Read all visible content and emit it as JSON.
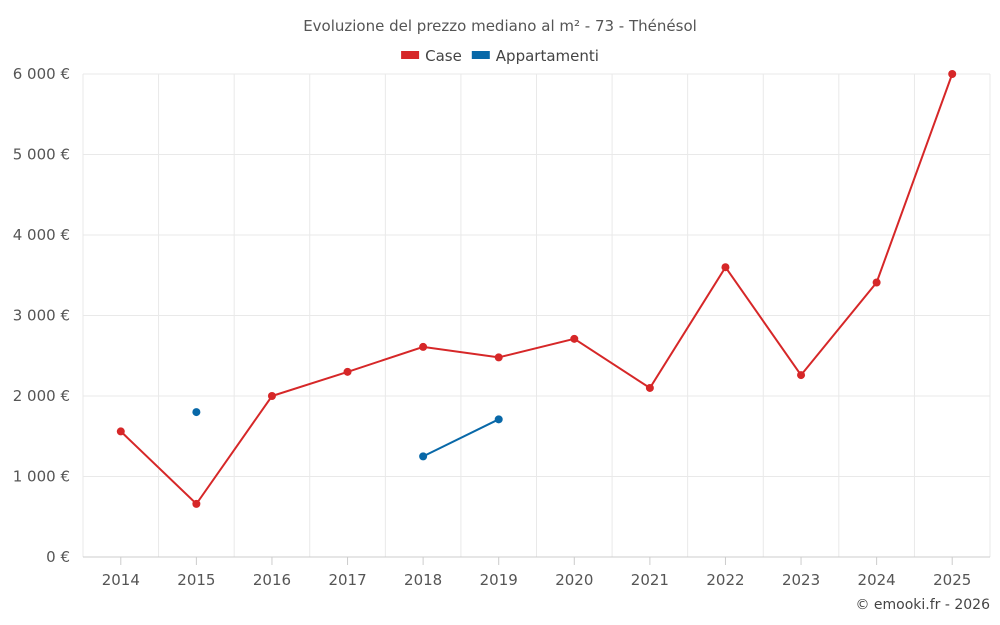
{
  "chart_data": {
    "type": "line",
    "title": "Evoluzione del prezzo mediano al m² - 73 - Thénésol",
    "categories": [
      "2014",
      "2015",
      "2016",
      "2017",
      "2018",
      "2019",
      "2020",
      "2021",
      "2022",
      "2023",
      "2024",
      "2025"
    ],
    "ylim": [
      0,
      6000
    ],
    "yticks": [
      0,
      1000,
      2000,
      3000,
      4000,
      5000,
      6000
    ],
    "ytick_labels": [
      "0 €",
      "1 000 €",
      "2 000 €",
      "3 000 €",
      "4 000 €",
      "5 000 €",
      "6 000 €"
    ],
    "grid": true,
    "legend_position": "top-center",
    "series": [
      {
        "name": "Case",
        "color": "#d62728",
        "values": [
          1560,
          660,
          2000,
          2300,
          2610,
          2480,
          2710,
          2100,
          3600,
          2260,
          3410,
          6000
        ]
      },
      {
        "name": "Appartamenti",
        "color": "#0868a8",
        "values": [
          null,
          1800,
          null,
          null,
          1250,
          1710,
          null,
          null,
          null,
          null,
          null,
          null
        ]
      }
    ]
  },
  "credit": "© emooki.fr - 2026"
}
